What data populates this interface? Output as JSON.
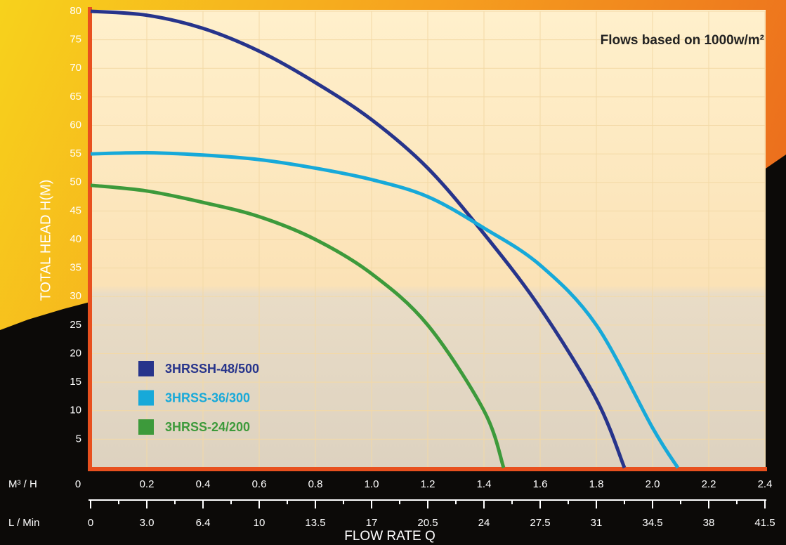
{
  "chart_data": {
    "type": "line",
    "annotation": "Flows based on 1000w/m²",
    "y_label": "TOTAL HEAD H(M)",
    "x_label": "FLOW RATE Q",
    "x_unit_label": "M³ / H",
    "x2_unit_label": "L / Min",
    "xlim": [
      0,
      2.4
    ],
    "xticks": [
      0,
      {
        "value": 0.2,
        "label": "0.2"
      },
      {
        "value": 0.4,
        "label": "0.4"
      },
      {
        "value": 0.6,
        "label": "0.6"
      },
      {
        "value": 0.8,
        "label": "0.8"
      },
      {
        "value": 1.0,
        "label": "1.0"
      },
      {
        "value": 1.2,
        "label": "1.2"
      },
      {
        "value": 1.4,
        "label": "1.4"
      },
      {
        "value": 1.6,
        "label": "1.6"
      },
      {
        "value": 1.8,
        "label": "1.8"
      },
      {
        "value": 2.0,
        "label": "2.0"
      },
      {
        "value": 2.2,
        "label": "2.2"
      },
      {
        "value": 2.4,
        "label": "2.4"
      }
    ],
    "x2_tick_labels": [
      "0",
      "3.0",
      "6.4",
      "10",
      "13.5",
      "17",
      "20.5",
      "24",
      "27.5",
      "31",
      "34.5",
      "38",
      "41.5"
    ],
    "ylim": [
      0,
      80
    ],
    "yticks": [
      5,
      10,
      15,
      20,
      25,
      30,
      35,
      40,
      45,
      50,
      55,
      60,
      65,
      70,
      75,
      80
    ],
    "grid": true,
    "series": [
      {
        "name": "3HRSSH-48/500",
        "color": "#27348b",
        "x": [
          0,
          0.2,
          0.4,
          0.6,
          0.8,
          1.0,
          1.2,
          1.4,
          1.6,
          1.8,
          1.9
        ],
        "values": [
          80,
          79.3,
          77,
          73,
          67.5,
          61,
          52.5,
          41,
          28,
          12,
          0
        ]
      },
      {
        "name": "3HRSS-36/300",
        "color": "#17a9d9",
        "x": [
          0,
          0.2,
          0.4,
          0.6,
          0.8,
          1.0,
          1.2,
          1.4,
          1.6,
          1.8,
          2.0,
          2.09
        ],
        "values": [
          55,
          55.2,
          54.8,
          54,
          52.5,
          50.5,
          47.5,
          42,
          35.5,
          25,
          7,
          0
        ]
      },
      {
        "name": "3HRSS-24/200",
        "color": "#3d9a3b",
        "x": [
          0,
          0.2,
          0.4,
          0.6,
          0.8,
          1.0,
          1.2,
          1.4,
          1.47
        ],
        "values": [
          49.5,
          48.5,
          46.5,
          44,
          40,
          34,
          25,
          10,
          0
        ]
      }
    ]
  }
}
